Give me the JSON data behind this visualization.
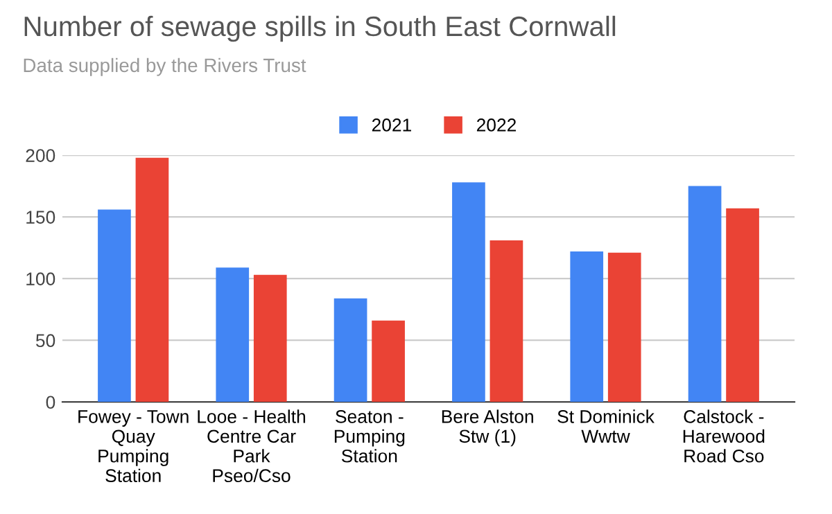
{
  "chart_data": {
    "type": "bar",
    "title": "Number of sewage spills in South East Cornwall",
    "subtitle": "Data supplied by the Rivers Trust",
    "categories": [
      "Fowey - Town\nQuay\nPumping\nStation",
      "Looe - Health\nCentre Car\nPark\nPseo/Cso",
      "Seaton -\nPumping\nStation",
      "Bere Alston\nStw (1)",
      "St Dominick\nWwtw",
      "Calstock -\nHarewood\nRoad Cso"
    ],
    "series": [
      {
        "name": "2021",
        "color": "#4285f4",
        "values": [
          156,
          109,
          84,
          178,
          122,
          175
        ]
      },
      {
        "name": "2022",
        "color": "#ea4335",
        "values": [
          198,
          103,
          66,
          131,
          121,
          157
        ]
      }
    ],
    "ylim": [
      0,
      200
    ],
    "yticks": [
      0,
      50,
      100,
      150,
      200
    ],
    "grid": "y",
    "legend": "top"
  }
}
